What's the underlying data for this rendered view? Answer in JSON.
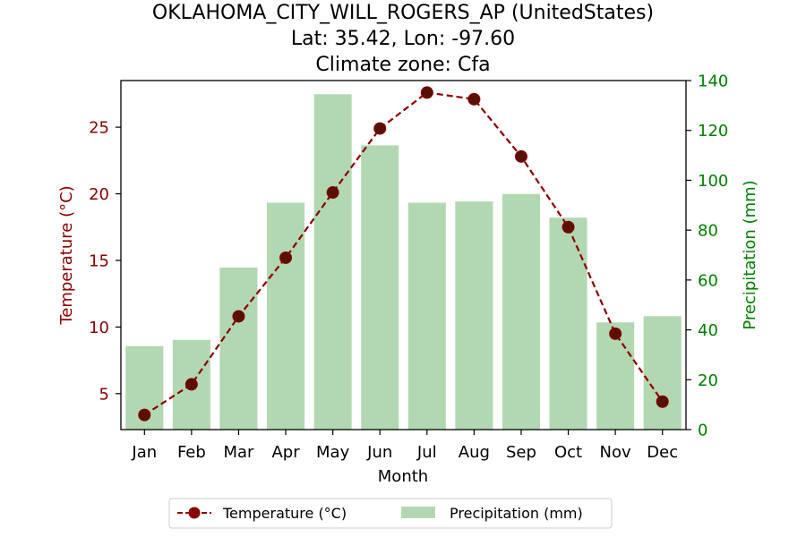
{
  "chart_data": {
    "type": "bar+line",
    "title": [
      "OKLAHOMA_CITY_WILL_ROGERS_AP (UnitedStates)",
      "Lat: 35.42, Lon: -97.60",
      "Climate zone: Cfa"
    ],
    "xlabel": "Month",
    "ylabel_left": "Temperature (°C)",
    "ylabel_right": "Precipitation (mm)",
    "categories": [
      "Jan",
      "Feb",
      "Mar",
      "Apr",
      "May",
      "Jun",
      "Jul",
      "Aug",
      "Sep",
      "Oct",
      "Nov",
      "Dec"
    ],
    "left_axis": {
      "range": [
        2.3,
        28.5
      ],
      "ticks": [
        5,
        10,
        15,
        20,
        25
      ]
    },
    "right_axis": {
      "range": [
        0,
        140
      ],
      "ticks": [
        0,
        20,
        40,
        60,
        80,
        100,
        120,
        140
      ]
    },
    "series": [
      {
        "name": "Temperature (°C)",
        "kind": "line",
        "axis": "left",
        "values": [
          3.4,
          5.7,
          10.8,
          15.2,
          20.1,
          24.9,
          27.6,
          27.1,
          22.8,
          17.5,
          9.5,
          4.4
        ]
      },
      {
        "name": "Precipitation (mm)",
        "kind": "bar",
        "axis": "right",
        "values": [
          33.5,
          36,
          65,
          91,
          134.5,
          114,
          91,
          91.5,
          94.5,
          85,
          43,
          45.5
        ]
      }
    ],
    "colors": {
      "temperature_line": "#8b0000",
      "temperature_marker": "#5a1000",
      "precip_bar": "#b2d8b2",
      "left_axis": "#8b0000",
      "right_axis": "#008000"
    },
    "legend_position": "bottom-center",
    "grid": false
  }
}
